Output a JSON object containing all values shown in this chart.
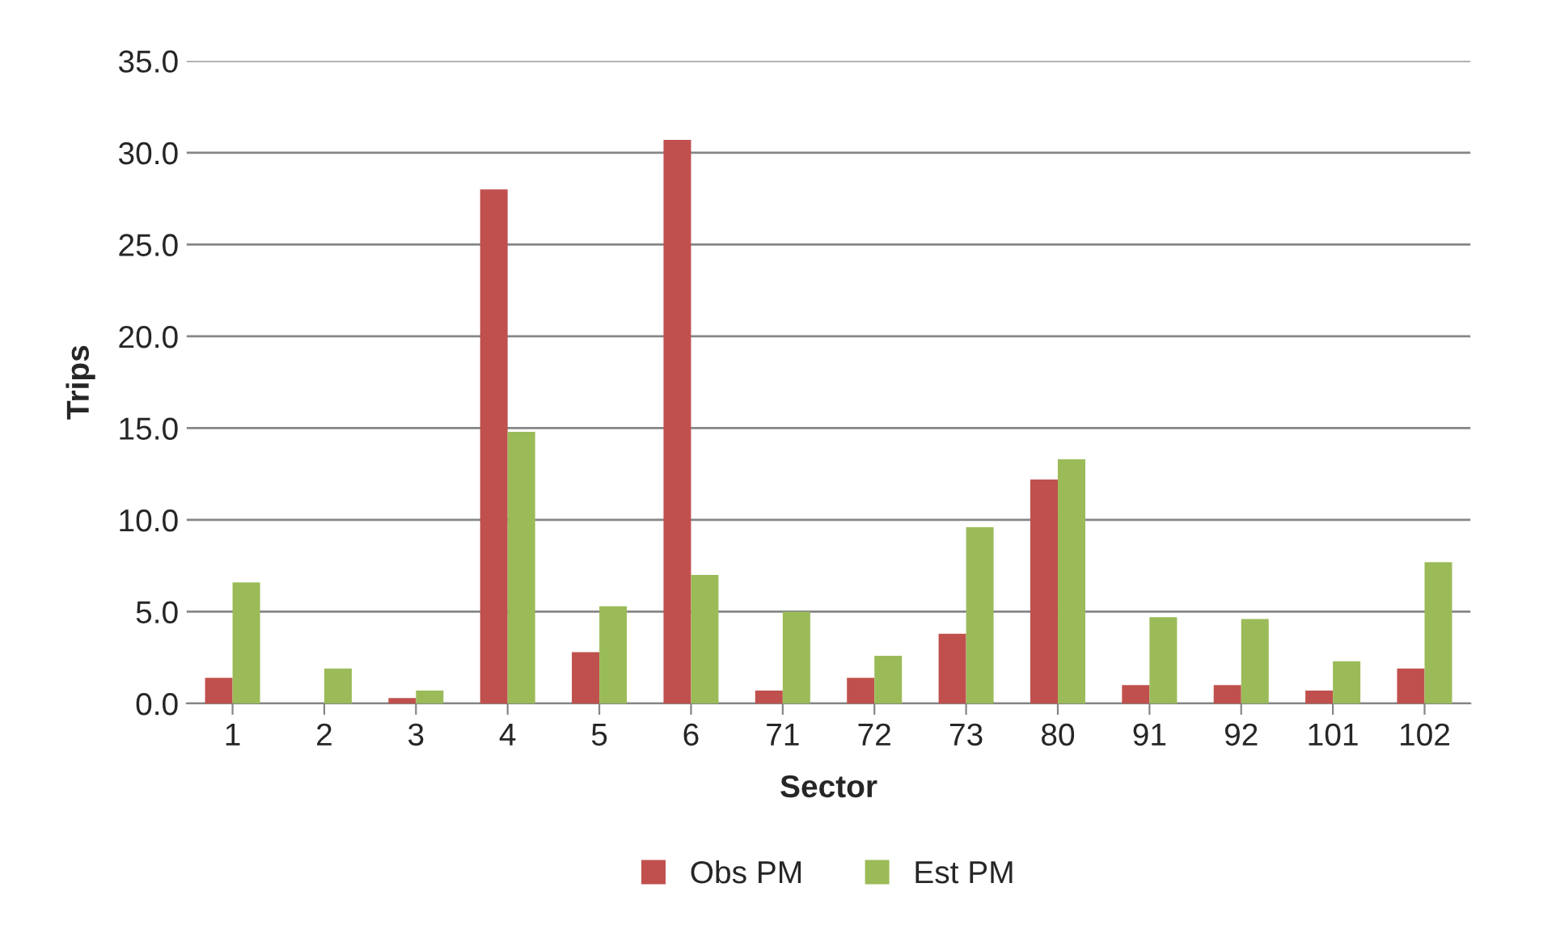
{
  "chart_data": {
    "type": "bar",
    "xlabel": "Sector",
    "ylabel": "Trips",
    "categories": [
      "1",
      "2",
      "3",
      "4",
      "5",
      "6",
      "71",
      "72",
      "73",
      "80",
      "91",
      "92",
      "101",
      "102"
    ],
    "series": [
      {
        "name": "Obs PM",
        "color": "#c0504d",
        "values": [
          1.4,
          0.0,
          0.3,
          28.0,
          2.8,
          30.7,
          0.7,
          1.4,
          3.8,
          12.2,
          1.0,
          1.0,
          0.7,
          1.9
        ]
      },
      {
        "name": "Est PM",
        "color": "#9bbb59",
        "values": [
          6.6,
          1.9,
          0.7,
          14.8,
          5.3,
          7.0,
          5.0,
          2.6,
          9.6,
          13.3,
          4.7,
          4.6,
          2.3,
          7.7
        ]
      }
    ],
    "ylim": [
      0,
      35
    ],
    "yticks": [
      {
        "value": 0,
        "label": "0.0"
      },
      {
        "value": 5,
        "label": "5.0"
      },
      {
        "value": 10,
        "label": "10.0"
      },
      {
        "value": 15,
        "label": "15.0"
      },
      {
        "value": 20,
        "label": "20.0"
      },
      {
        "value": 25,
        "label": "25.0"
      },
      {
        "value": 30,
        "label": "30.0"
      },
      {
        "value": 35,
        "label": "35.0"
      }
    ],
    "grid": "y",
    "legend": "bottom"
  }
}
